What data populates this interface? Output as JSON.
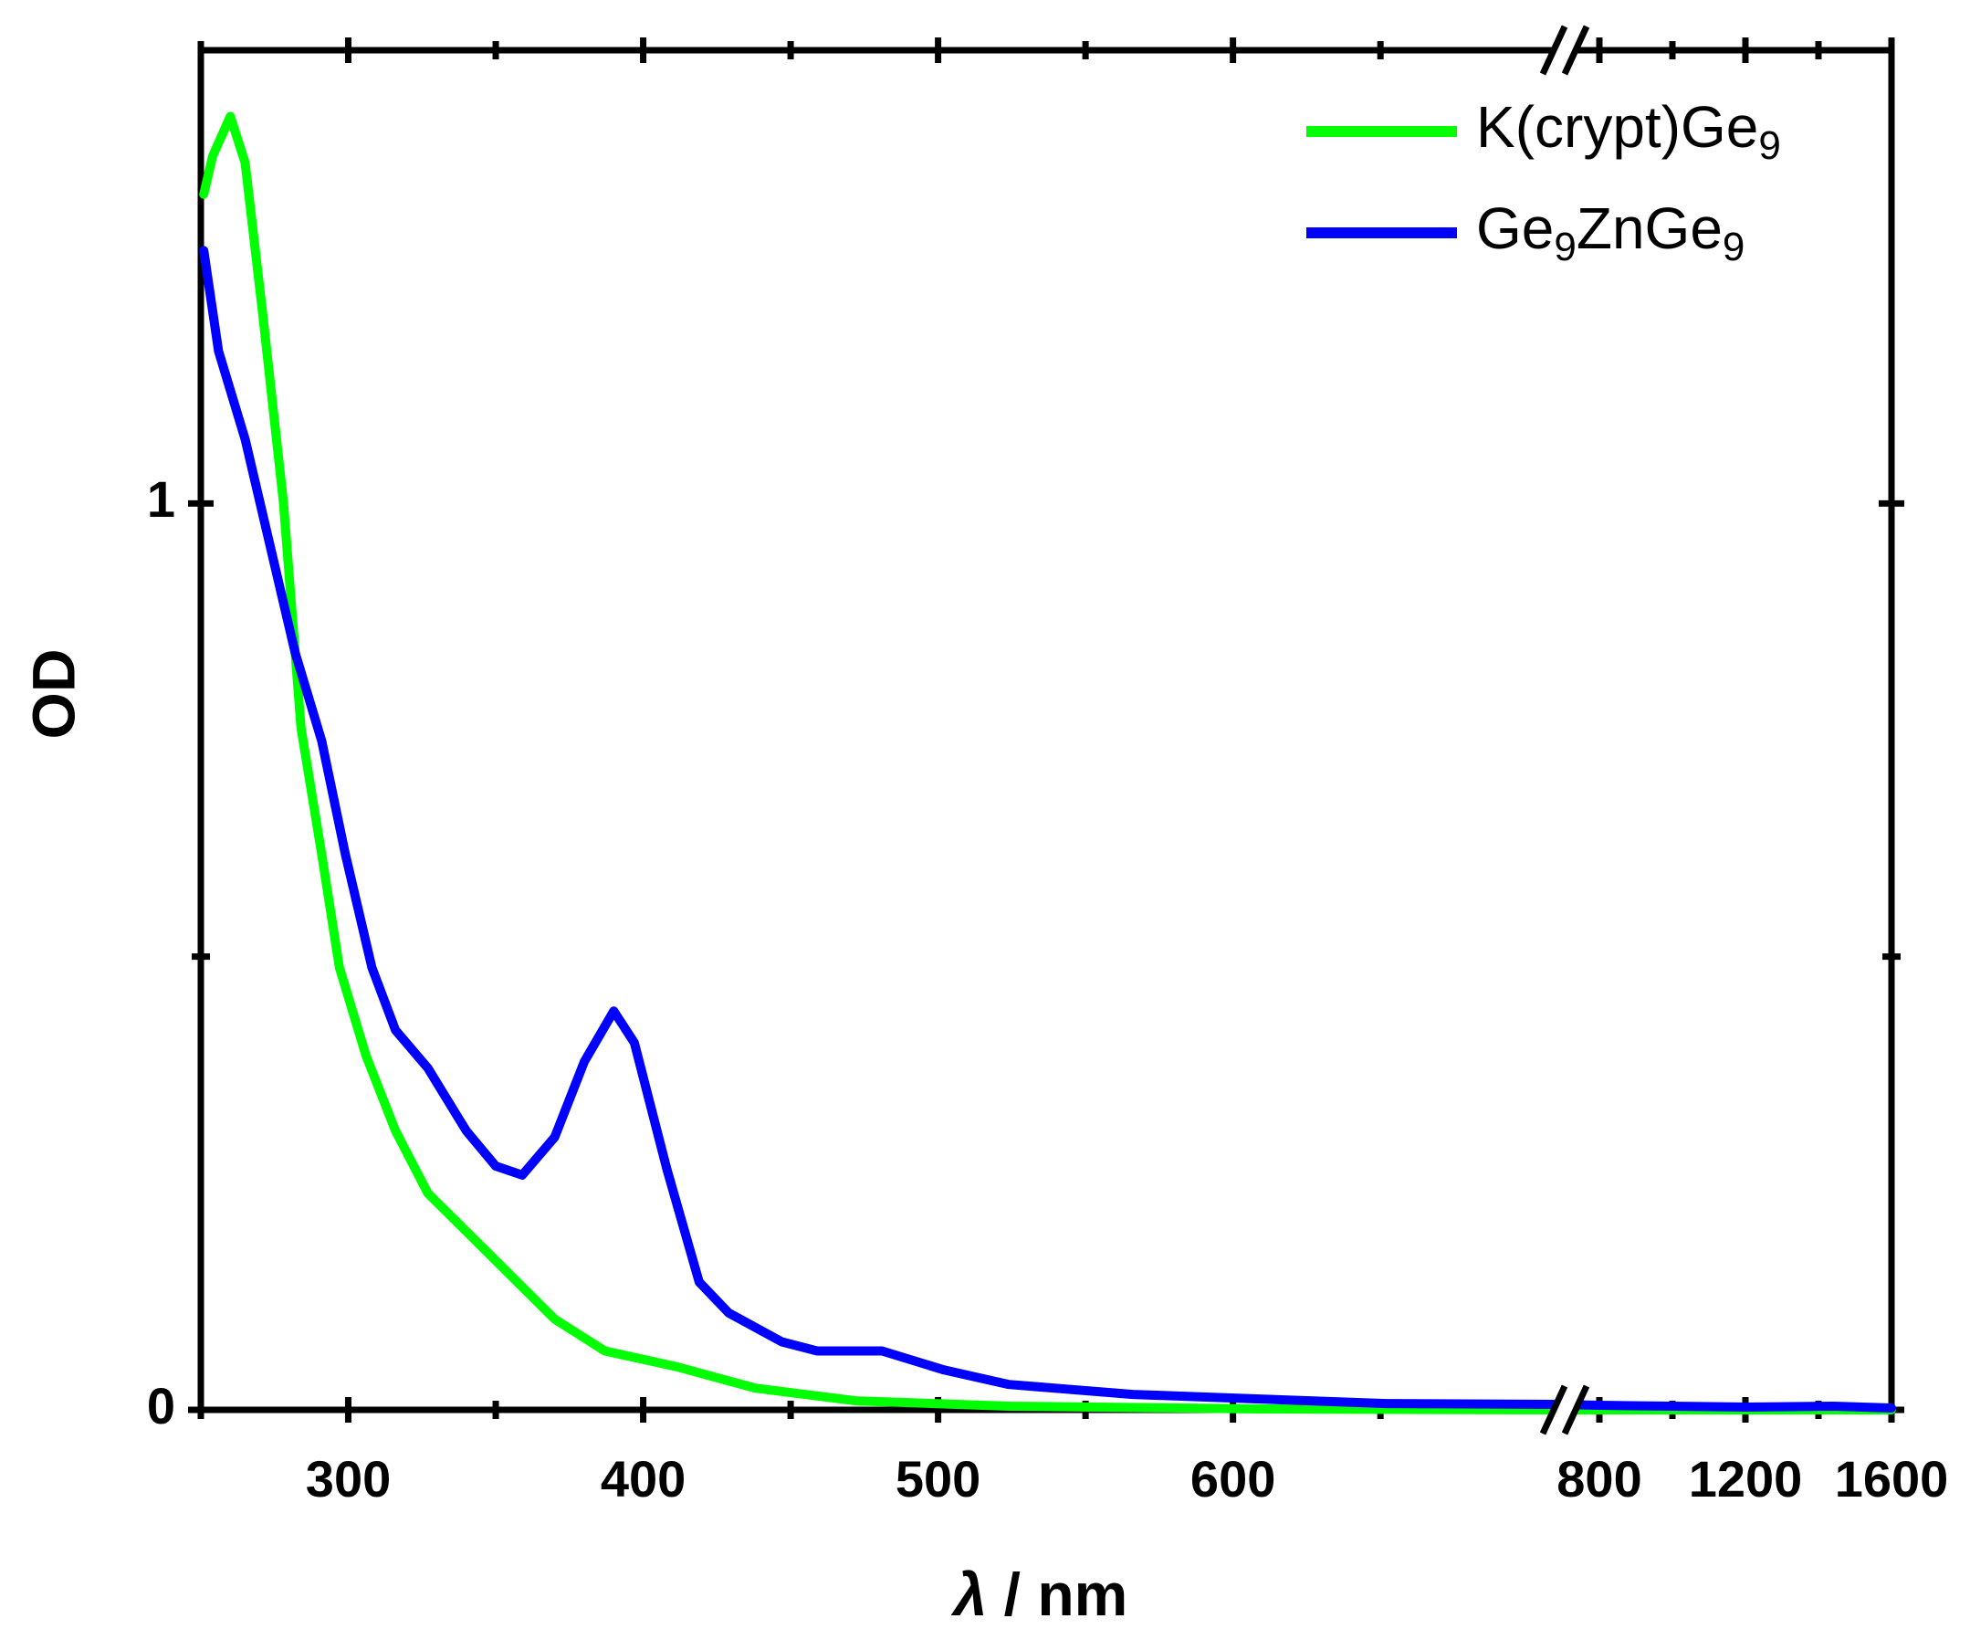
{
  "chart_data": {
    "type": "line",
    "xlabel": "λ / nm",
    "ylabel": "OD",
    "ylim": [
      0,
      1.5
    ],
    "yticks": [
      0,
      1
    ],
    "yminor_ticks": [
      0.5
    ],
    "x_segments": [
      {
        "xlim": [
          250,
          710
        ],
        "xticks": [
          300,
          400,
          500,
          600
        ],
        "xminor_ticks": [
          250,
          350,
          450,
          550,
          650
        ]
      },
      {
        "xlim": [
          725,
          1600
        ],
        "xticks": [
          800,
          1200,
          1600
        ],
        "xminor_ticks": [
          1000,
          1400
        ]
      }
    ],
    "legend": "upper right",
    "series": [
      {
        "name": "K(crypt)Ge9",
        "color": "#00ff00",
        "x": [
          251,
          254,
          260,
          265,
          271,
          278,
          284,
          291,
          297,
          306,
          316,
          327,
          340,
          353,
          370,
          387,
          412,
          438,
          472,
          524,
          609,
          710,
          800,
          1600
        ],
        "values": [
          1.341,
          1.383,
          1.427,
          1.376,
          1.209,
          1.001,
          0.752,
          0.613,
          0.488,
          0.391,
          0.308,
          0.239,
          0.197,
          0.155,
          0.1,
          0.065,
          0.047,
          0.024,
          0.01,
          0.004,
          0.001,
          0,
          0,
          0
        ]
      },
      {
        "name": "Ge9ZnGe9",
        "color": "#0000ff",
        "x": [
          251,
          256,
          265,
          273,
          282,
          291,
          299,
          308,
          316,
          327,
          340,
          350,
          359,
          370,
          380,
          390,
          397,
          408,
          419,
          429,
          447,
          459,
          481,
          502,
          524,
          566,
          609,
          652,
          710,
          800,
          1200,
          1440,
          1600
        ],
        "values": [
          1.279,
          1.168,
          1.071,
          0.96,
          0.835,
          0.738,
          0.613,
          0.488,
          0.419,
          0.377,
          0.308,
          0.269,
          0.259,
          0.301,
          0.384,
          0.44,
          0.405,
          0.266,
          0.141,
          0.107,
          0.075,
          0.065,
          0.065,
          0.044,
          0.028,
          0.017,
          0.012,
          0.007,
          0.006,
          0.005,
          0.003,
          0.004,
          0.002
        ]
      }
    ]
  }
}
